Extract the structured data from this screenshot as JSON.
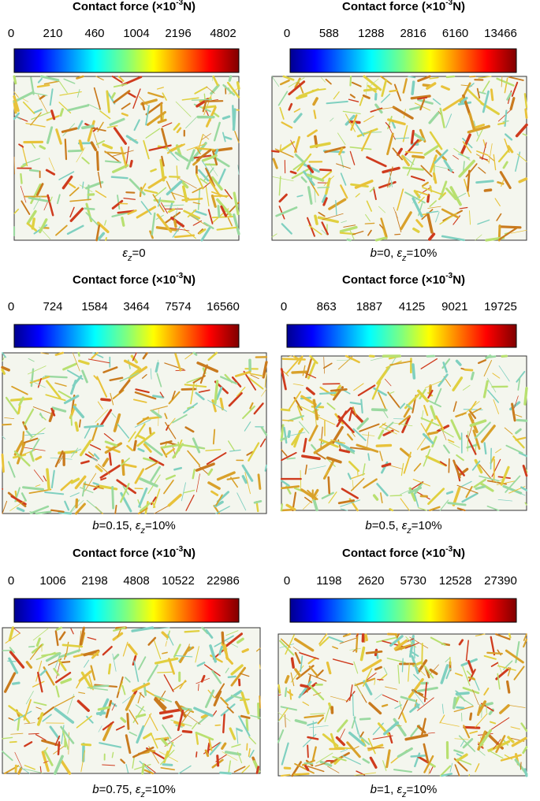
{
  "panels": [
    {
      "title_parts": [
        {
          "text": "Contact force (×10"
        },
        {
          "text": "-3",
          "sup": true
        },
        {
          "text": "N)"
        }
      ],
      "ticks": [
        0,
        210,
        460,
        1004,
        2196,
        4802
      ],
      "caption": [
        {
          "text": "ε",
          "italic": true
        },
        {
          "text": "z",
          "italic": true,
          "sub": true
        },
        {
          "text": "=0"
        }
      ]
    },
    {
      "title_parts": [
        {
          "text": "Contact force (×10"
        },
        {
          "text": "-3",
          "sup": true
        },
        {
          "text": "N)"
        }
      ],
      "ticks": [
        0,
        588,
        1288,
        2816,
        6160,
        13466
      ],
      "caption": [
        {
          "text": "b",
          "italic": true
        },
        {
          "text": "=0, "
        },
        {
          "text": "ε",
          "italic": true
        },
        {
          "text": "z",
          "italic": true,
          "sub": true
        },
        {
          "text": "=10%"
        }
      ]
    },
    {
      "title_parts": [
        {
          "text": "Contact force (×10"
        },
        {
          "text": "-3",
          "sup": true
        },
        {
          "text": "N)"
        }
      ],
      "ticks": [
        0,
        724,
        1584,
        3464,
        7574,
        16560
      ],
      "caption": [
        {
          "text": "b",
          "italic": true
        },
        {
          "text": "=0.15, "
        },
        {
          "text": "ε",
          "italic": true
        },
        {
          "text": "z",
          "italic": true,
          "sub": true
        },
        {
          "text": "=10%"
        }
      ]
    },
    {
      "title_parts": [
        {
          "text": "Contact force (×10"
        },
        {
          "text": "-3",
          "sup": true
        },
        {
          "text": "N)"
        }
      ],
      "ticks": [
        0,
        863,
        1887,
        4125,
        9021,
        19725
      ],
      "caption": [
        {
          "text": "b",
          "italic": true
        },
        {
          "text": "=0.5, "
        },
        {
          "text": "ε",
          "italic": true
        },
        {
          "text": "z",
          "italic": true,
          "sub": true
        },
        {
          "text": "=10%"
        }
      ]
    },
    {
      "title_parts": [
        {
          "text": "Contact force (×10"
        },
        {
          "text": "-3",
          "sup": true
        },
        {
          "text": "N)"
        }
      ],
      "ticks": [
        0,
        1006,
        2198,
        4808,
        10522,
        22986
      ],
      "caption": [
        {
          "text": "b",
          "italic": true
        },
        {
          "text": "=0.75, "
        },
        {
          "text": "ε",
          "italic": true
        },
        {
          "text": "z",
          "italic": true,
          "sub": true
        },
        {
          "text": "=10%"
        }
      ]
    },
    {
      "title_parts": [
        {
          "text": "Contact force (×10"
        },
        {
          "text": "-3",
          "sup": true
        },
        {
          "text": "N)"
        }
      ],
      "ticks": [
        0,
        1198,
        2620,
        5730,
        12528,
        27390
      ],
      "caption": [
        {
          "text": "b",
          "italic": true
        },
        {
          "text": "=1, "
        },
        {
          "text": "ε",
          "italic": true
        },
        {
          "text": "z",
          "italic": true,
          "sub": true
        },
        {
          "text": "=10%"
        }
      ]
    }
  ]
}
